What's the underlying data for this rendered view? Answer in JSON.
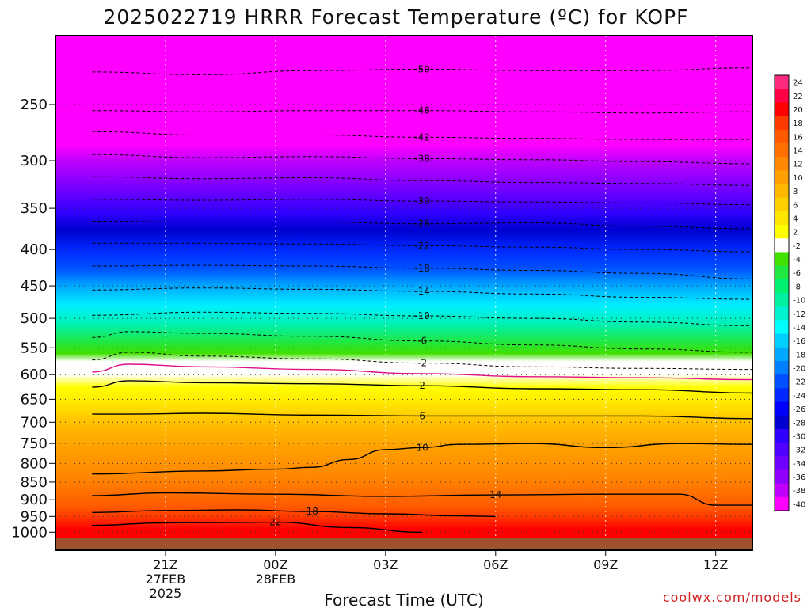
{
  "chart_data": {
    "type": "heatmap",
    "title": "2025022719 HRRR Forecast Temperature (ºC) for KOPF",
    "xlabel": "Forecast Time (UTC)",
    "ylabel": "",
    "credit": "coolwx.com/models",
    "x_ticks": [
      {
        "hour": 21,
        "lines": [
          "21Z",
          "27FEB",
          "2025"
        ]
      },
      {
        "hour": 24,
        "lines": [
          "00Z",
          "28FEB"
        ]
      },
      {
        "hour": 27,
        "lines": [
          "03Z"
        ]
      },
      {
        "hour": 30,
        "lines": [
          "06Z"
        ]
      },
      {
        "hour": 33,
        "lines": [
          "09Z"
        ]
      },
      {
        "hour": 36,
        "lines": [
          "12Z"
        ]
      }
    ],
    "y_ticks": [
      250,
      300,
      350,
      400,
      450,
      500,
      550,
      600,
      650,
      700,
      750,
      800,
      850,
      900,
      950,
      1000
    ],
    "y_scale": "log-pressure (hPa, inverted)",
    "grid": true,
    "colorbar": {
      "labels": [
        "24",
        "22",
        "20",
        "18",
        "16",
        "14",
        "12",
        "10",
        "8",
        "6",
        "4",
        "2",
        "-2",
        "-4",
        "-6",
        "-8",
        "-10",
        "-12",
        "-14",
        "-16",
        "-18",
        "-20",
        "-22",
        "-24",
        "-26",
        "-28",
        "-30",
        "-32",
        "-34",
        "-36",
        "-38",
        "-40"
      ],
      "colors": [
        "#ff2a80",
        "#ff0044",
        "#ff0000",
        "#ff3a00",
        "#ff5a00",
        "#ff7000",
        "#ff8800",
        "#ffa000",
        "#ffb800",
        "#ffd000",
        "#ffe600",
        "#ffff00",
        "#ffffff",
        "#40e000",
        "#20e840",
        "#00f070",
        "#00f0a0",
        "#00f0d0",
        "#00ffff",
        "#00d0ff",
        "#00a8ff",
        "#0080ff",
        "#0050ff",
        "#0028ff",
        "#0000ff",
        "#0000d0",
        "#3000ff",
        "#5000ff",
        "#7000ff",
        "#9000ff",
        "#c000ff",
        "#ff00ff"
      ]
    },
    "contours": [
      {
        "value": -50,
        "label": "-50",
        "dashed": true,
        "points": [
          [
            19,
            225
          ],
          [
            22,
            227
          ],
          [
            25,
            224
          ],
          [
            28,
            223
          ],
          [
            31,
            224
          ],
          [
            34,
            224
          ],
          [
            37,
            222
          ]
        ]
      },
      {
        "value": -46,
        "label": "-46",
        "dashed": true,
        "points": [
          [
            19,
            255
          ],
          [
            22,
            256
          ],
          [
            25,
            255
          ],
          [
            28,
            255
          ],
          [
            31,
            256
          ],
          [
            34,
            257
          ],
          [
            37,
            256
          ]
        ]
      },
      {
        "value": -42,
        "label": "-42",
        "dashed": true,
        "points": [
          [
            19,
            273
          ],
          [
            22,
            276
          ],
          [
            25,
            276
          ],
          [
            28,
            278
          ],
          [
            31,
            279
          ],
          [
            34,
            280
          ],
          [
            37,
            280
          ]
        ]
      },
      {
        "value": -38,
        "label": "-38",
        "dashed": true,
        "points": [
          [
            19,
            294
          ],
          [
            22,
            297
          ],
          [
            25,
            296
          ],
          [
            28,
            298
          ],
          [
            31,
            299
          ],
          [
            34,
            301
          ],
          [
            37,
            303
          ]
        ]
      },
      {
        "value": -34,
        "label": "",
        "dashed": true,
        "points": [
          [
            19,
            316
          ],
          [
            22,
            318
          ],
          [
            25,
            317
          ],
          [
            28,
            320
          ],
          [
            31,
            322
          ],
          [
            34,
            323
          ],
          [
            37,
            325
          ]
        ]
      },
      {
        "value": -30,
        "label": "-30",
        "dashed": true,
        "points": [
          [
            19,
            340
          ],
          [
            22,
            341
          ],
          [
            25,
            340
          ],
          [
            28,
            342
          ],
          [
            31,
            343
          ],
          [
            34,
            344
          ],
          [
            37,
            346
          ]
        ]
      },
      {
        "value": -26,
        "label": "-26",
        "dashed": true,
        "points": [
          [
            19,
            365
          ],
          [
            22,
            366
          ],
          [
            25,
            366
          ],
          [
            28,
            368
          ],
          [
            31,
            367
          ],
          [
            34,
            371
          ],
          [
            37,
            374
          ]
        ]
      },
      {
        "value": -22,
        "label": "-22",
        "dashed": true,
        "points": [
          [
            19,
            392
          ],
          [
            22,
            392
          ],
          [
            25,
            393
          ],
          [
            28,
            395
          ],
          [
            31,
            397
          ],
          [
            34,
            400
          ],
          [
            37,
            403
          ]
        ]
      },
      {
        "value": -18,
        "label": "-18",
        "dashed": true,
        "points": [
          [
            19,
            422
          ],
          [
            22,
            421
          ],
          [
            25,
            422
          ],
          [
            28,
            425
          ],
          [
            31,
            428
          ],
          [
            34,
            432
          ],
          [
            37,
            440
          ]
        ]
      },
      {
        "value": -14,
        "label": "-14",
        "dashed": true,
        "points": [
          [
            19,
            456
          ],
          [
            22,
            453
          ],
          [
            25,
            455
          ],
          [
            28,
            458
          ],
          [
            31,
            462
          ],
          [
            34,
            467
          ],
          [
            37,
            470
          ]
        ]
      },
      {
        "value": -10,
        "label": "-10",
        "dashed": true,
        "points": [
          [
            19,
            495
          ],
          [
            22,
            490
          ],
          [
            25,
            492
          ],
          [
            28,
            496
          ],
          [
            31,
            500
          ],
          [
            34,
            506
          ],
          [
            37,
            512
          ]
        ]
      },
      {
        "value": -6,
        "label": "-6",
        "dashed": true,
        "points": [
          [
            19,
            532
          ],
          [
            20,
            522
          ],
          [
            22,
            525
          ],
          [
            25,
            530
          ],
          [
            28,
            538
          ],
          [
            31,
            545
          ],
          [
            34,
            552
          ],
          [
            37,
            558
          ]
        ]
      },
      {
        "value": -2,
        "label": "-2",
        "dashed": true,
        "points": [
          [
            19,
            572
          ],
          [
            20,
            558
          ],
          [
            22,
            565
          ],
          [
            25,
            570
          ],
          [
            28,
            578
          ],
          [
            31,
            585
          ],
          [
            34,
            588
          ],
          [
            37,
            590
          ]
        ]
      },
      {
        "value": 0,
        "label": "",
        "dashed": false,
        "color": "#e0108a",
        "points": [
          [
            19,
            595
          ],
          [
            20,
            580
          ],
          [
            22,
            585
          ],
          [
            25,
            590
          ],
          [
            28,
            598
          ],
          [
            31,
            604
          ],
          [
            34,
            606
          ],
          [
            37,
            610
          ]
        ]
      },
      {
        "value": 2,
        "label": "2",
        "dashed": false,
        "points": [
          [
            19,
            625
          ],
          [
            20,
            612
          ],
          [
            22,
            616
          ],
          [
            25,
            618
          ],
          [
            28,
            622
          ],
          [
            31,
            628
          ],
          [
            34,
            630
          ],
          [
            37,
            637
          ]
        ]
      },
      {
        "value": 6,
        "label": "6",
        "dashed": false,
        "points": [
          [
            19,
            682
          ],
          [
            20,
            682
          ],
          [
            22,
            680
          ],
          [
            25,
            684
          ],
          [
            28,
            686
          ],
          [
            31,
            686
          ],
          [
            34,
            686
          ],
          [
            37,
            692
          ]
        ]
      },
      {
        "value": 10,
        "label": "10",
        "dashed": false,
        "points": [
          [
            19,
            828
          ],
          [
            22,
            820
          ],
          [
            24,
            815
          ],
          [
            25,
            810
          ],
          [
            26,
            790
          ],
          [
            27,
            765
          ],
          [
            28,
            760
          ],
          [
            29,
            752
          ],
          [
            31,
            750
          ],
          [
            33,
            760
          ],
          [
            35,
            750
          ],
          [
            37,
            752
          ]
        ]
      },
      {
        "value": 14,
        "label": "14",
        "dashed": false,
        "points": [
          [
            19,
            888
          ],
          [
            21,
            880
          ],
          [
            24,
            884
          ],
          [
            27,
            890
          ],
          [
            30,
            886
          ],
          [
            33,
            884
          ],
          [
            35,
            884
          ],
          [
            36,
            916
          ],
          [
            37,
            916
          ]
        ]
      },
      {
        "value": 18,
        "label": "18",
        "dashed": false,
        "points": [
          [
            19,
            938
          ],
          [
            21,
            932
          ],
          [
            23,
            930
          ],
          [
            25,
            935
          ],
          [
            27,
            942
          ],
          [
            29,
            948
          ],
          [
            30,
            950
          ]
        ]
      },
      {
        "value": 22,
        "label": "22",
        "dashed": false,
        "points": [
          [
            19,
            978
          ],
          [
            21,
            970
          ],
          [
            24,
            968
          ],
          [
            26,
            985
          ],
          [
            28,
            1000
          ]
        ]
      }
    ]
  }
}
